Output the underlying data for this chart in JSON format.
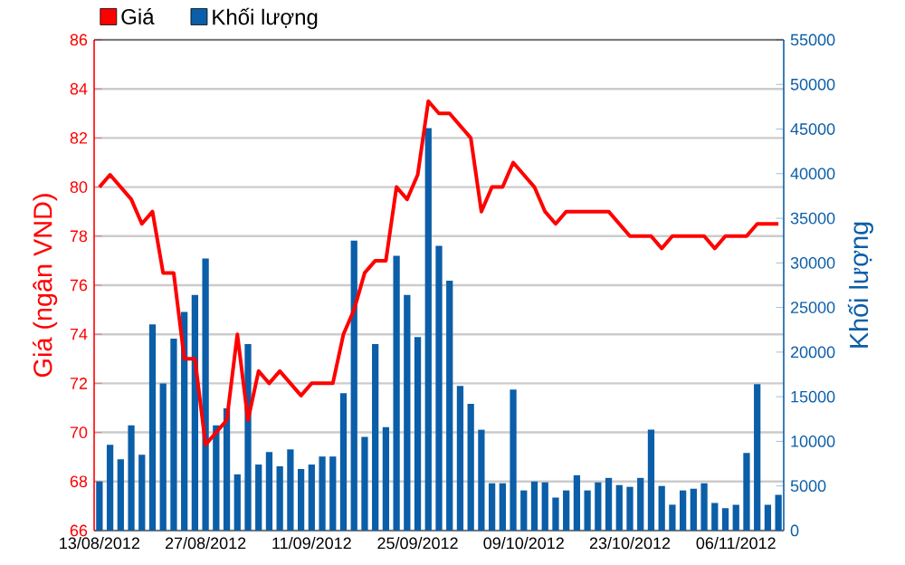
{
  "chart_data": {
    "type": "line",
    "categories": [
      "13/08/2012",
      null,
      null,
      null,
      null,
      null,
      null,
      null,
      null,
      null,
      "27/08/2012",
      null,
      null,
      null,
      null,
      null,
      null,
      null,
      null,
      null,
      "11/09/2012",
      null,
      null,
      null,
      null,
      null,
      null,
      null,
      null,
      null,
      "25/09/2012",
      null,
      null,
      null,
      null,
      null,
      null,
      null,
      null,
      null,
      "09/10/2012",
      null,
      null,
      null,
      null,
      null,
      null,
      null,
      null,
      null,
      "23/10/2012",
      null,
      null,
      null,
      null,
      null,
      null,
      null,
      null,
      null,
      "06/11/2012",
      null,
      null,
      null,
      null
    ],
    "series": [
      {
        "name": "Khối lượng",
        "type": "bar",
        "axis": "y2",
        "color": "#0b5ea8",
        "values": [
          5500,
          9600,
          8000,
          11800,
          8500,
          23100,
          16500,
          21500,
          24500,
          26400,
          30500,
          11800,
          13700,
          6300,
          20900,
          7400,
          8800,
          7200,
          9100,
          6900,
          7400,
          8300,
          8300,
          15400,
          32500,
          10500,
          20900,
          11600,
          30800,
          26400,
          21700,
          45100,
          31900,
          28000,
          16200,
          14200,
          11300,
          5300,
          5300,
          15800,
          4500,
          5500,
          5400,
          3700,
          4500,
          6200,
          4500,
          5400,
          5900,
          5100,
          4900,
          5900,
          11300,
          5000,
          2900,
          4500,
          4700,
          5300,
          3100,
          2500,
          2900,
          8700,
          16400,
          2900,
          4000
        ]
      },
      {
        "name": "Giá",
        "color": "#ff0000",
        "values": [
          80.0,
          80.5,
          80.0,
          79.5,
          78.5,
          79.0,
          76.5,
          76.5,
          73.0,
          73.0,
          69.5,
          70.0,
          70.5,
          74.0,
          70.5,
          72.5,
          72.0,
          72.5,
          72.0,
          71.5,
          72.0,
          72.0,
          72.0,
          74.0,
          75.0,
          76.5,
          77.0,
          77.0,
          80.0,
          79.5,
          80.5,
          83.5,
          83.0,
          83.0,
          82.5,
          82.0,
          79.0,
          80.0,
          80.0,
          81.0,
          80.5,
          80.0,
          79.0,
          78.5,
          79.0,
          79.0,
          79.0,
          79.0,
          79.0,
          78.5,
          78.0,
          78.0,
          78.0,
          77.5,
          78.0,
          78.0,
          78.0,
          78.0,
          77.5,
          78.0,
          78.0,
          78.0,
          78.5,
          78.5,
          78.5
        ]
      }
    ],
    "ylabel": "Giá (ngân VND)",
    "y2label": "Khối lượng",
    "ylim": [
      66,
      86
    ],
    "yticks": [
      66,
      68,
      70,
      72,
      74,
      76,
      78,
      80,
      82,
      84,
      86
    ],
    "y2lim": [
      0,
      55000
    ],
    "y2ticks": [
      0,
      5000,
      10000,
      15000,
      20000,
      25000,
      30000,
      35000,
      40000,
      45000,
      50000,
      55000
    ],
    "grid": "y",
    "legend": "top left"
  }
}
